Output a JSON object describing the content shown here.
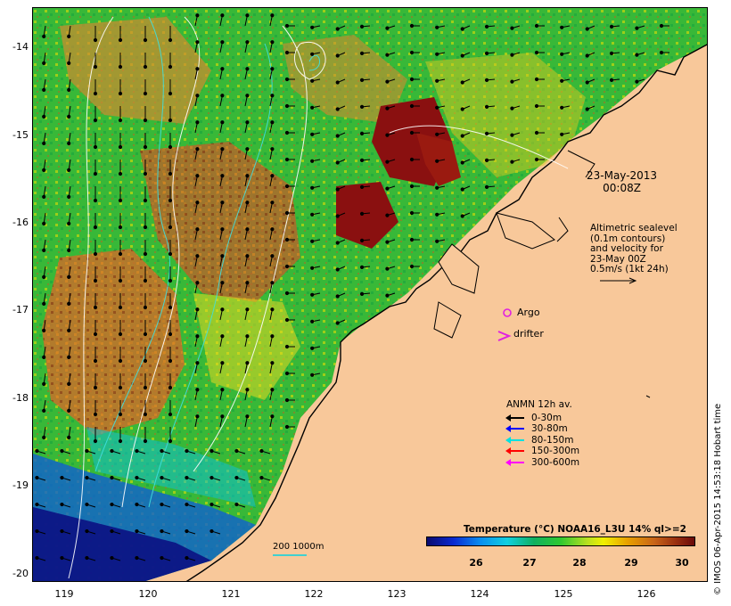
{
  "map": {
    "date": "23-May-2013",
    "time": "00:08Z",
    "altimetry_note": [
      "Altimetric sealevel",
      "(0.1m contours)",
      "and velocity for",
      "23-May 00Z",
      "0.5m/s (1kt 24h)"
    ],
    "argo_label": "Argo",
    "drifter_label": "drifter",
    "bathymetry_scale_label": "200  1000m",
    "credit": "© IMOS 06-Apr-2015 14:53:18 Hobart time",
    "land_color": "#f8c89a",
    "argo_color": "#e020e0",
    "drifter_color": "#e020e0"
  },
  "axes": {
    "latitude_ticks": [
      "-14",
      "-15",
      "-16",
      "-17",
      "-18",
      "-19",
      "-20"
    ],
    "longitude_ticks": [
      "119",
      "120",
      "121",
      "122",
      "123",
      "124",
      "125",
      "126"
    ]
  },
  "legend": {
    "title": "ANMN 12h av.",
    "items": [
      {
        "label": "0-30m",
        "color": "#000000"
      },
      {
        "label": "30-80m",
        "color": "#0000ff"
      },
      {
        "label": "80-150m",
        "color": "#00e0e0"
      },
      {
        "label": "150-300m",
        "color": "#ff0000"
      },
      {
        "label": "300-600m",
        "color": "#ff00ff"
      }
    ]
  },
  "colorbar": {
    "title": "Temperature (°C) NOAA16_L3U 14% ql>=2",
    "ticks": [
      "26",
      "27",
      "28",
      "29",
      "30"
    ]
  }
}
